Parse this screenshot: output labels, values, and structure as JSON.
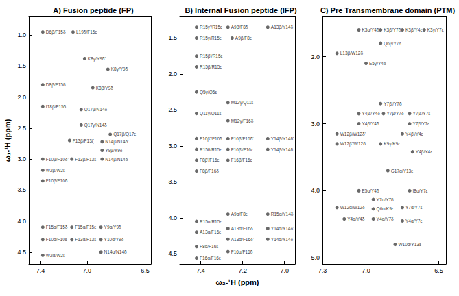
{
  "chart_data": [
    {
      "type": "scatter",
      "title": "A) Fusion peptide (FP)",
      "y_label": "ω₁-¹H (ppm)",
      "xlim": [
        7.5,
        6.45
      ],
      "ylim": [
        0.7,
        4.7
      ],
      "xticks": [
        7.4,
        {
          "value": 7,
          "label": "7.0"
        },
        6.5
      ],
      "yticks": [
        {
          "value": 1,
          "label": "1.0"
        },
        1.5,
        {
          "value": 2,
          "label": "2.0"
        },
        2.5,
        {
          "value": 3,
          "label": "3.0"
        },
        3.5,
        {
          "value": 4,
          "label": "4.0"
        },
        4.5
      ],
      "grid": false,
      "color": "#444444",
      "marker": "circle",
      "points": [
        {
          "x": 7.38,
          "y": 0.95,
          "label": "D6β/F15δ"
        },
        {
          "x": 7.12,
          "y": 0.95,
          "label": "L19δ/F15ε"
        },
        {
          "x": 7.02,
          "y": 1.38,
          "label": "K8γ/Y9δ'"
        },
        {
          "x": 6.82,
          "y": 1.55,
          "label": "K8γ/Y9δ"
        },
        {
          "x": 7.38,
          "y": 1.8,
          "label": "D8β/F15δ"
        },
        {
          "x": 6.95,
          "y": 1.85,
          "label": "K8β/Y9δ"
        },
        {
          "x": 7.38,
          "y": 2.15,
          "label": "I18β/F15δ"
        },
        {
          "x": 7.05,
          "y": 2.2,
          "label": "Q17β/N14δ"
        },
        {
          "x": 7.05,
          "y": 2.45,
          "label": "Q17γ/N14δ"
        },
        {
          "x": 6.8,
          "y": 2.6,
          "label": "Q17β/Q17ε"
        },
        {
          "x": 7.15,
          "y": 2.7,
          "label": "F13β/F13ζ"
        },
        {
          "x": 6.87,
          "y": 2.72,
          "label": "N14β/N14δ'"
        },
        {
          "x": 6.87,
          "y": 2.86,
          "label": "Y9β/Y9δ"
        },
        {
          "x": 7.38,
          "y": 3.0,
          "label": "F10β/F10δ'"
        },
        {
          "x": 7.13,
          "y": 3.0,
          "label": "F13β/F13ε"
        },
        {
          "x": 6.87,
          "y": 3.0,
          "label": "N14β/N14δ"
        },
        {
          "x": 7.38,
          "y": 3.18,
          "label": "W2β/W2ε"
        },
        {
          "x": 7.38,
          "y": 3.35,
          "label": "F10β/F10δ"
        },
        {
          "x": 7.38,
          "y": 4.1,
          "label": "F15α/F15δ"
        },
        {
          "x": 7.13,
          "y": 4.1,
          "label": "F15α/F15ε"
        },
        {
          "x": 6.88,
          "y": 4.1,
          "label": "Y9α/Y9δ"
        },
        {
          "x": 7.38,
          "y": 4.3,
          "label": "F10α/F10ε"
        },
        {
          "x": 7.13,
          "y": 4.3,
          "label": "F13α/F13ε"
        },
        {
          "x": 6.88,
          "y": 4.3,
          "label": "Y10α/Y9δ"
        },
        {
          "x": 7.38,
          "y": 4.55,
          "label": "W2α/W2ε"
        },
        {
          "x": 6.88,
          "y": 4.5,
          "label": "N14α/N14δ"
        }
      ]
    },
    {
      "type": "scatter",
      "title": "B) Internal Fusion peptide (IFP)",
      "x_label": "ω₂-¹H (ppm)",
      "xlim": [
        7.5,
        6.95
      ],
      "ylim": [
        1.2,
        4.65
      ],
      "xticks": [
        7.4,
        7.2,
        {
          "value": 7,
          "label": "7.0"
        }
      ],
      "yticks": [
        1.5,
        {
          "value": 2,
          "label": "2.0"
        },
        2.5,
        {
          "value": 3,
          "label": "3.0"
        },
        3.5,
        {
          "value": 4,
          "label": "4.0"
        },
        4.5
      ],
      "grid": false,
      "color": "#444444",
      "marker": "circle",
      "points": [
        {
          "x": 7.42,
          "y": 1.35,
          "label": "R15γ'/R15ε"
        },
        {
          "x": 7.27,
          "y": 1.35,
          "label": "A9β/F8δ"
        },
        {
          "x": 7.08,
          "y": 1.35,
          "label": "A13β/Y14δ"
        },
        {
          "x": 7.42,
          "y": 1.5,
          "label": "R15γ/R15ε"
        },
        {
          "x": 7.25,
          "y": 1.5,
          "label": "A9β/F8ε"
        },
        {
          "x": 7.42,
          "y": 1.75,
          "label": "R15β'/R15ε"
        },
        {
          "x": 7.42,
          "y": 1.9,
          "label": "R15β/R15ε"
        },
        {
          "x": 7.42,
          "y": 2.25,
          "label": "Q5γ/Q5ε"
        },
        {
          "x": 7.27,
          "y": 2.4,
          "label": "M12γ/Q11ε"
        },
        {
          "x": 7.42,
          "y": 2.55,
          "label": "Q11γ/Q11ε"
        },
        {
          "x": 7.27,
          "y": 2.65,
          "label": "M12γ/F16δ"
        },
        {
          "x": 7.42,
          "y": 2.9,
          "label": "F16β'/F16δ"
        },
        {
          "x": 7.27,
          "y": 2.9,
          "label": "F16β/F16δ'"
        },
        {
          "x": 7.08,
          "y": 2.9,
          "label": "Y14β/Y14δ'"
        },
        {
          "x": 7.42,
          "y": 3.05,
          "label": "R15δ/R15ε"
        },
        {
          "x": 7.27,
          "y": 3.05,
          "label": "F16β'/F16ε"
        },
        {
          "x": 7.08,
          "y": 3.05,
          "label": "Y14β/Y14δ"
        },
        {
          "x": 7.42,
          "y": 3.2,
          "label": "F8β'/F16ε"
        },
        {
          "x": 7.27,
          "y": 3.2,
          "label": "F16β/F16ε"
        },
        {
          "x": 7.42,
          "y": 3.35,
          "label": "F8β/F16δ"
        },
        {
          "x": 7.27,
          "y": 3.95,
          "label": "A9α/F8ε"
        },
        {
          "x": 7.08,
          "y": 3.95,
          "label": "R15α/Y14δ"
        },
        {
          "x": 7.42,
          "y": 4.05,
          "label": "R15α/R15ε"
        },
        {
          "x": 7.27,
          "y": 4.15,
          "label": "A13α/F16δ"
        },
        {
          "x": 7.08,
          "y": 4.15,
          "label": "Y14α/Y14δ'"
        },
        {
          "x": 7.42,
          "y": 4.2,
          "label": "A13α/F16ε"
        },
        {
          "x": 7.27,
          "y": 4.3,
          "label": "A13α/F16δ'"
        },
        {
          "x": 7.08,
          "y": 4.3,
          "label": "Y14α/Y14δ"
        },
        {
          "x": 7.42,
          "y": 4.4,
          "label": "F8α/F16ε"
        },
        {
          "x": 7.27,
          "y": 4.47,
          "label": "F16α/F16δ"
        },
        {
          "x": 7.42,
          "y": 4.56,
          "label": "F16α/F16ε"
        }
      ]
    },
    {
      "type": "scatter",
      "title": "C) Pre Transmembrane domain (PTM)",
      "xlim": [
        7.3,
        6.45
      ],
      "ylim": [
        1.4,
        5.1
      ],
      "xticks": [
        7.3,
        {
          "value": 7,
          "label": "7.0"
        },
        6.5
      ],
      "yticks": [
        {
          "value": 2,
          "label": "2.0"
        },
        {
          "value": 3,
          "label": "3.0"
        },
        {
          "value": 4,
          "label": "4.0"
        },
        {
          "value": 5,
          "label": "5.0"
        }
      ],
      "grid": false,
      "color": "#444444",
      "marker": "circle",
      "points": [
        {
          "x": 7.05,
          "y": 1.6,
          "label": "K3α/Y4δ"
        },
        {
          "x": 6.9,
          "y": 1.6,
          "label": "K3β/Y7δ"
        },
        {
          "x": 6.75,
          "y": 1.6,
          "label": "K3β/Y4ε"
        },
        {
          "x": 6.6,
          "y": 1.6,
          "label": "K3γ/Y7ε"
        },
        {
          "x": 6.9,
          "y": 1.8,
          "label": "Q6β/Y7δ"
        },
        {
          "x": 7.2,
          "y": 1.95,
          "label": "L13β/W12δ"
        },
        {
          "x": 7.0,
          "y": 2.1,
          "label": "E5γ/Y4δ"
        },
        {
          "x": 6.9,
          "y": 2.7,
          "label": "Y7β'/Y7δ"
        },
        {
          "x": 7.05,
          "y": 2.85,
          "label": "Y4β'/Y4δ"
        },
        {
          "x": 6.88,
          "y": 2.85,
          "label": "Y7β/Y7δ"
        },
        {
          "x": 6.7,
          "y": 2.85,
          "label": "Y7β'/Y7ε"
        },
        {
          "x": 7.05,
          "y": 3.0,
          "label": "Y4β/Y4δ"
        },
        {
          "x": 6.7,
          "y": 3.0,
          "label": "Y7β/Y7ε"
        },
        {
          "x": 7.2,
          "y": 3.15,
          "label": "W12β/W12δ'"
        },
        {
          "x": 6.75,
          "y": 3.15,
          "label": "Y4β'/Y4ε"
        },
        {
          "x": 7.2,
          "y": 3.3,
          "label": "W12β'/W12δ"
        },
        {
          "x": 6.9,
          "y": 3.3,
          "label": "K9γ/K9ε"
        },
        {
          "x": 6.68,
          "y": 3.42,
          "label": "Y4β/Y4ε"
        },
        {
          "x": 6.85,
          "y": 3.7,
          "label": "G17α/Y13ε"
        },
        {
          "x": 7.05,
          "y": 4.0,
          "label": "E5α/Y4δ"
        },
        {
          "x": 6.7,
          "y": 4.0,
          "label": "I8α/Y7ε"
        },
        {
          "x": 6.95,
          "y": 4.13,
          "label": "Y7α/Y7δ"
        },
        {
          "x": 7.2,
          "y": 4.25,
          "label": "W12α/W12δ"
        },
        {
          "x": 6.95,
          "y": 4.27,
          "label": "Q6α/K9ε"
        },
        {
          "x": 6.75,
          "y": 4.25,
          "label": "Y7α/Y7ε"
        },
        {
          "x": 7.15,
          "y": 4.42,
          "label": "Y4α/Y4δ"
        },
        {
          "x": 6.95,
          "y": 4.42,
          "label": "Y4α/Y7δ"
        },
        {
          "x": 6.75,
          "y": 4.45,
          "label": "Y4α/Y7ε"
        },
        {
          "x": 6.8,
          "y": 4.8,
          "label": "W10α/Y13ε"
        }
      ]
    }
  ]
}
